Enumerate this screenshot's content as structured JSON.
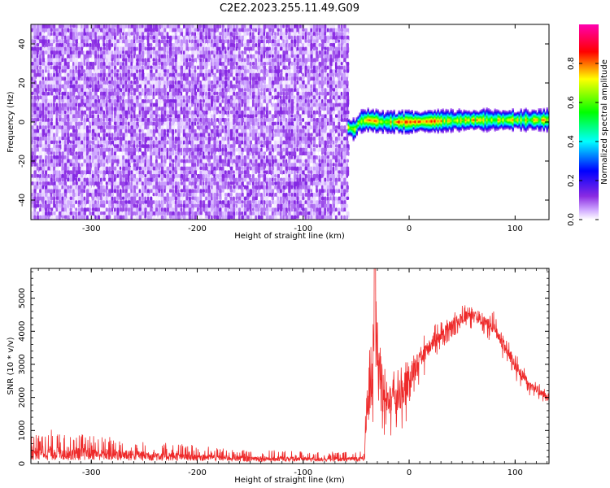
{
  "figure_title": "C2E2.2023.255.11.49.G09",
  "chart_data": [
    {
      "type": "heatmap",
      "title": "",
      "xlabel": "Height of straight line (km)",
      "ylabel": "Frequency (Hz)",
      "xlim": [
        -357,
        132
      ],
      "ylim": [
        -50,
        50
      ],
      "x_ticks": [
        -300,
        -200,
        -100,
        0,
        100
      ],
      "x_tick_labels": [
        "-300",
        "-200",
        "-100",
        "0",
        "100"
      ],
      "y_ticks": [
        -40,
        -20,
        0,
        20,
        40
      ],
      "y_tick_labels": [
        "-40",
        "-20",
        "0",
        "20",
        "40"
      ],
      "noise_region": {
        "x_from": -357,
        "x_to": -58,
        "typical_amplitude": 0.1
      },
      "signal_band": {
        "x_from": -58,
        "x_to": 132,
        "center_freq_hz": 0,
        "half_width_hz": 5
      },
      "signal_center_freq": [
        {
          "x": -57,
          "y": -3
        },
        {
          "x": -52,
          "y": -4
        },
        {
          "x": -48,
          "y": 0
        },
        {
          "x": -40,
          "y": 1
        },
        {
          "x": -25,
          "y": 0
        },
        {
          "x": 0,
          "y": 0
        },
        {
          "x": 60,
          "y": 1
        },
        {
          "x": 100,
          "y": 1
        },
        {
          "x": 132,
          "y": 1
        }
      ],
      "peak_amplitude": 1.0,
      "grid": false
    },
    {
      "type": "line",
      "title": "",
      "xlabel": "Height of straight line (km)",
      "ylabel": "SNR (10 * v/v)",
      "xlim": [
        -357,
        132
      ],
      "ylim": [
        0,
        5900
      ],
      "x_ticks": [
        -300,
        -200,
        -100,
        0,
        100
      ],
      "x_tick_labels": [
        "-300",
        "-200",
        "-100",
        "0",
        "100"
      ],
      "y_ticks": [
        0,
        1000,
        2000,
        3000,
        4000,
        5000
      ],
      "y_tick_labels": [
        "0",
        "1000",
        "2000",
        "3000",
        "4000",
        "5000"
      ],
      "color": "#ee2a2a",
      "grid": false,
      "series_envelope": [
        {
          "x": -357,
          "low": 100,
          "high": 1100
        },
        {
          "x": -300,
          "low": 100,
          "high": 900
        },
        {
          "x": -250,
          "low": 80,
          "high": 700
        },
        {
          "x": -200,
          "low": 80,
          "high": 550
        },
        {
          "x": -150,
          "low": 60,
          "high": 420
        },
        {
          "x": -100,
          "low": 60,
          "high": 380
        },
        {
          "x": -60,
          "low": 60,
          "high": 350
        },
        {
          "x": -42,
          "low": 80,
          "high": 380
        },
        {
          "x": -40,
          "low": 300,
          "high": 3200
        },
        {
          "x": -32,
          "low": 400,
          "high": 5900
        },
        {
          "x": -20,
          "low": 800,
          "high": 3200
        },
        {
          "x": -5,
          "low": 600,
          "high": 3500
        },
        {
          "x": 0,
          "low": 1800,
          "high": 3500
        },
        {
          "x": 20,
          "low": 3000,
          "high": 4100
        },
        {
          "x": 40,
          "low": 3800,
          "high": 4600
        },
        {
          "x": 60,
          "low": 4100,
          "high": 5000
        },
        {
          "x": 80,
          "low": 3600,
          "high": 4600
        },
        {
          "x": 100,
          "low": 2500,
          "high": 3400
        },
        {
          "x": 115,
          "low": 2000,
          "high": 2600
        },
        {
          "x": 132,
          "low": 1800,
          "high": 2200
        }
      ]
    }
  ],
  "colorbar": {
    "label": "Normalized spectral amplitude",
    "range": [
      0,
      1
    ],
    "ticks": [
      0.0,
      0.2,
      0.4,
      0.6,
      0.8
    ],
    "tick_labels": [
      "0.0",
      "0.2",
      "0.4",
      "0.6",
      "0.8"
    ],
    "colormap": [
      "#ffffff",
      "#8a2be2",
      "#0000ff",
      "#00ffff",
      "#00ff00",
      "#ffff00",
      "#ff0000",
      "#ff00ff"
    ]
  }
}
